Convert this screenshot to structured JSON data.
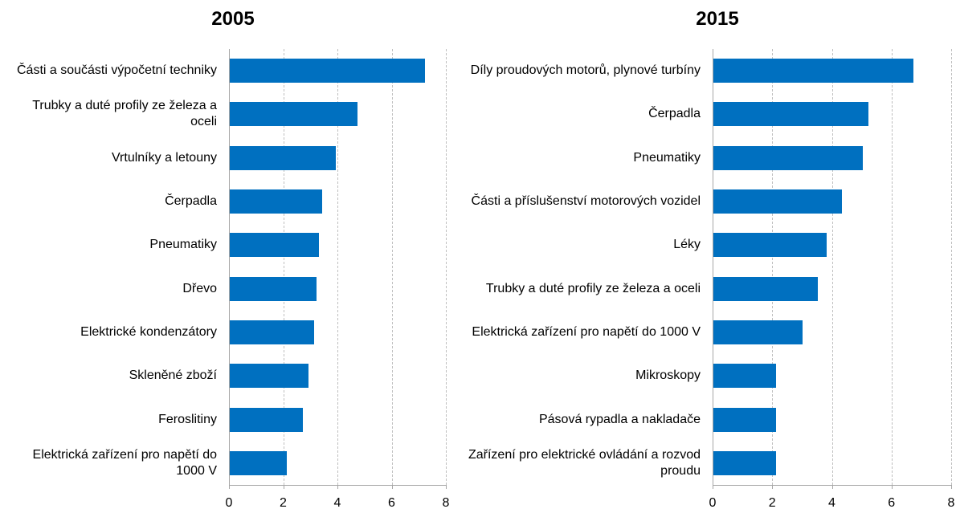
{
  "chart_data": [
    {
      "type": "bar",
      "orientation": "horizontal",
      "title": "2005",
      "categories": [
        "Části a součásti výpočetní techniky",
        "Trubky a duté profily ze železa a oceli",
        "Vrtulníky a letouny",
        "Čerpadla",
        "Pneumatiky",
        "Dřevo",
        "Elektrické kondenzátory",
        "Skleněné zboží",
        "Feroslitiny",
        "Elektrická zařízení pro napětí do 1000 V"
      ],
      "values": [
        7.2,
        4.7,
        3.9,
        3.4,
        3.3,
        3.2,
        3.1,
        2.9,
        2.7,
        2.1
      ],
      "color": "#0070c0",
      "xlim": [
        0,
        8
      ],
      "xticks": [
        0,
        2,
        4,
        6,
        8
      ],
      "grid": true
    },
    {
      "type": "bar",
      "orientation": "horizontal",
      "title": "2015",
      "categories": [
        "Díly proudových motorů, plynové turbíny",
        "Čerpadla",
        "Pneumatiky",
        "Části a příslušenství motorových vozidel",
        "Léky",
        "Trubky a duté profily ze železa a oceli",
        "Elektrická zařízení pro napětí do 1000 V",
        "Mikroskopy",
        "Pásová rypadla a nakladače",
        "Zařízení pro elektrické ovládání a rozvod proudu"
      ],
      "values": [
        6.7,
        5.2,
        5.0,
        4.3,
        3.8,
        3.5,
        3.0,
        2.1,
        2.1,
        2.1
      ],
      "color": "#0070c0",
      "xlim": [
        0,
        8
      ],
      "xticks": [
        0,
        2,
        4,
        6,
        8
      ],
      "grid": true
    }
  ]
}
